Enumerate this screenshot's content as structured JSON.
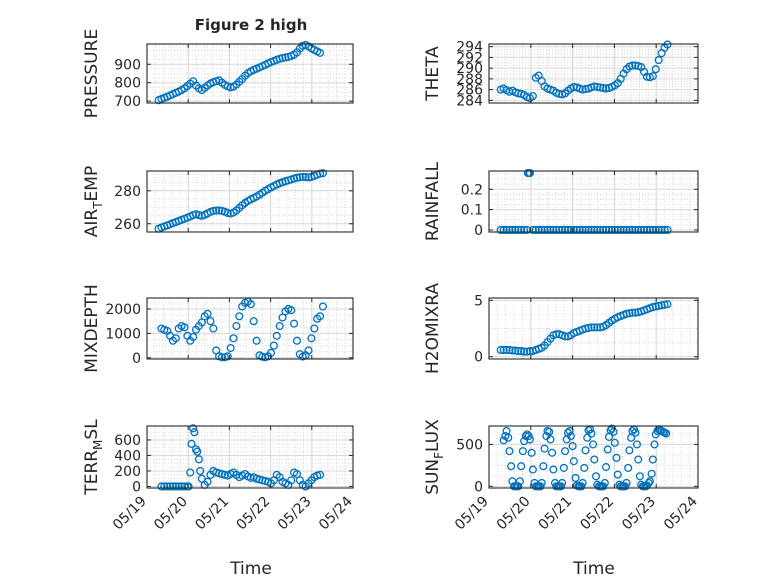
{
  "figure": {
    "title": "Figure 2 high",
    "xlabel": "Time",
    "x_ticks": [
      "05/19",
      "05/20",
      "05/21",
      "05/22",
      "05/23",
      "05/24"
    ],
    "marker_color": "#0072BD",
    "grid_color": "#d9d9d9"
  },
  "chart_data": [
    {
      "type": "scatter",
      "ylabel": "PRESSURE",
      "ylabel_parts": [
        [
          "PRESSURE",
          ""
        ]
      ],
      "title": "Figure 2 high",
      "xlabel": "",
      "xlim": [
        0,
        5
      ],
      "ylim": [
        690,
        1010
      ],
      "yticks": [
        700,
        800,
        900
      ],
      "grid": true,
      "x": [
        0.28,
        0.35,
        0.42,
        0.49,
        0.56,
        0.63,
        0.7,
        0.77,
        0.84,
        0.91,
        0.98,
        1.05,
        1.12,
        1.19,
        1.26,
        1.33,
        1.4,
        1.47,
        1.54,
        1.61,
        1.68,
        1.75,
        1.82,
        1.89,
        1.96,
        2.03,
        2.1,
        2.17,
        2.24,
        2.31,
        2.38,
        2.45,
        2.52,
        2.59,
        2.66,
        2.73,
        2.8,
        2.87,
        2.94,
        3.01,
        3.08,
        3.15,
        3.22,
        3.29,
        3.36,
        3.43,
        3.5,
        3.57,
        3.64,
        3.71,
        3.78,
        3.85,
        3.92,
        3.99,
        4.06,
        4.13,
        4.2
      ],
      "y": [
        705,
        712,
        718,
        724,
        731,
        738,
        745,
        752,
        760,
        770,
        782,
        795,
        808,
        785,
        770,
        760,
        772,
        785,
        796,
        803,
        808,
        813,
        800,
        788,
        780,
        775,
        779,
        790,
        805,
        820,
        838,
        852,
        862,
        870,
        876,
        883,
        890,
        897,
        905,
        912,
        918,
        924,
        930,
        934,
        937,
        940,
        945,
        952,
        965,
        985,
        1000,
        1005,
        997,
        986,
        978,
        970,
        962
      ]
    },
    {
      "type": "scatter",
      "ylabel": "THETA",
      "ylabel_parts": [
        [
          "THETA",
          ""
        ]
      ],
      "xlabel": "",
      "xlim": [
        0,
        5
      ],
      "ylim": [
        283.5,
        294.5
      ],
      "yticks": [
        284,
        286,
        288,
        290,
        292,
        294
      ],
      "grid": true,
      "x": [
        0.28,
        0.35,
        0.42,
        0.49,
        0.56,
        0.63,
        0.7,
        0.77,
        0.84,
        0.91,
        0.98,
        1.05,
        1.12,
        1.19,
        1.26,
        1.33,
        1.4,
        1.47,
        1.54,
        1.61,
        1.68,
        1.75,
        1.82,
        1.89,
        1.96,
        2.03,
        2.1,
        2.17,
        2.24,
        2.31,
        2.38,
        2.45,
        2.52,
        2.59,
        2.66,
        2.73,
        2.8,
        2.87,
        2.94,
        3.01,
        3.08,
        3.15,
        3.22,
        3.29,
        3.36,
        3.43,
        3.5,
        3.57,
        3.64,
        3.71,
        3.78,
        3.85,
        3.92,
        3.99,
        4.06,
        4.13,
        4.2,
        4.27
      ],
      "y": [
        286.0,
        286.2,
        285.9,
        285.6,
        285.8,
        285.5,
        285.3,
        285.2,
        285.0,
        284.6,
        284.4,
        284.8,
        288.2,
        288.6,
        287.6,
        286.6,
        286.2,
        286.0,
        285.8,
        285.4,
        285.2,
        285.1,
        285.3,
        285.8,
        286.2,
        286.5,
        286.4,
        286.2,
        286.0,
        286.1,
        286.2,
        286.4,
        286.6,
        286.5,
        286.4,
        286.3,
        286.2,
        286.3,
        286.5,
        286.8,
        287.2,
        288.0,
        289.0,
        289.8,
        290.3,
        290.5,
        290.5,
        290.4,
        290.2,
        289.3,
        288.4,
        288.3,
        288.5,
        289.8,
        291.5,
        292.8,
        293.8,
        294.4
      ]
    },
    {
      "type": "scatter",
      "ylabel": "AIR_TEMP",
      "ylabel_parts": [
        [
          "AIR",
          ""
        ],
        [
          "T",
          "sub"
        ],
        [
          "EMP",
          ""
        ]
      ],
      "xlabel": "",
      "xlim": [
        0,
        5
      ],
      "ylim": [
        255,
        292
      ],
      "yticks": [
        260,
        280
      ],
      "grid": true,
      "x": [
        0.28,
        0.35,
        0.42,
        0.49,
        0.56,
        0.63,
        0.7,
        0.77,
        0.84,
        0.91,
        0.98,
        1.05,
        1.12,
        1.19,
        1.26,
        1.33,
        1.4,
        1.47,
        1.54,
        1.61,
        1.68,
        1.75,
        1.82,
        1.89,
        1.96,
        2.03,
        2.1,
        2.17,
        2.24,
        2.31,
        2.38,
        2.45,
        2.52,
        2.59,
        2.66,
        2.73,
        2.8,
        2.87,
        2.94,
        3.01,
        3.08,
        3.15,
        3.22,
        3.29,
        3.36,
        3.43,
        3.5,
        3.57,
        3.64,
        3.71,
        3.78,
        3.85,
        3.92,
        3.99,
        4.06,
        4.13,
        4.2,
        4.27
      ],
      "y": [
        257.0,
        257.7,
        258.4,
        259.0,
        259.7,
        260.4,
        261.0,
        261.7,
        262.4,
        263.0,
        263.7,
        264.4,
        265.3,
        265.8,
        265.2,
        264.8,
        265.4,
        266.3,
        267.2,
        267.8,
        268.0,
        268.1,
        267.8,
        267.3,
        266.5,
        266.2,
        266.8,
        268.0,
        269.6,
        271.2,
        272.6,
        273.8,
        274.8,
        275.6,
        276.5,
        277.6,
        278.8,
        280.0,
        281.0,
        282.0,
        282.9,
        283.8,
        284.6,
        285.2,
        285.8,
        286.3,
        286.8,
        287.4,
        287.9,
        288.2,
        288.4,
        288.3,
        288.1,
        288.4,
        289.0,
        289.8,
        290.4,
        290.7
      ]
    },
    {
      "type": "scatter",
      "ylabel": "RAINFALL",
      "ylabel_parts": [
        [
          "RAINFALL",
          ""
        ]
      ],
      "xlabel": "",
      "xlim": [
        0,
        5
      ],
      "ylim": [
        -0.01,
        0.29
      ],
      "yticks": [
        0,
        0.1,
        0.2
      ],
      "grid": true,
      "x": [
        0.28,
        0.35,
        0.42,
        0.49,
        0.56,
        0.63,
        0.7,
        0.77,
        0.84,
        0.91,
        0.93,
        0.96,
        0.98,
        1.05,
        1.12,
        1.19,
        1.26,
        1.33,
        1.4,
        1.47,
        1.54,
        1.61,
        1.68,
        1.75,
        1.82,
        1.89,
        1.96,
        2.03,
        2.1,
        2.17,
        2.24,
        2.31,
        2.38,
        2.45,
        2.52,
        2.59,
        2.66,
        2.73,
        2.8,
        2.87,
        2.94,
        3.01,
        3.08,
        3.15,
        3.22,
        3.29,
        3.36,
        3.43,
        3.5,
        3.57,
        3.64,
        3.71,
        3.78,
        3.85,
        3.92,
        3.99,
        4.06,
        4.13,
        4.2,
        4.27
      ],
      "y": [
        0,
        0,
        0,
        0,
        0,
        0,
        0,
        0,
        0,
        0,
        0.28,
        0.28,
        0.28,
        0,
        0,
        0,
        0,
        0,
        0,
        0,
        0,
        0,
        0,
        0,
        0,
        0,
        0,
        0,
        0,
        0,
        0,
        0,
        0,
        0,
        0,
        0,
        0,
        0,
        0,
        0,
        0,
        0,
        0,
        0,
        0,
        0,
        0,
        0,
        0,
        0,
        0,
        0,
        0,
        0,
        0,
        0,
        0,
        0,
        0,
        0
      ]
    },
    {
      "type": "scatter",
      "ylabel": "MIXDEPTH",
      "ylabel_parts": [
        [
          "MIXDEPTH",
          ""
        ]
      ],
      "xlabel": "",
      "xlim": [
        0,
        5
      ],
      "ylim": [
        -50,
        2450
      ],
      "yticks": [
        0,
        1000,
        2000
      ],
      "grid": true,
      "x": [
        0.35,
        0.42,
        0.49,
        0.56,
        0.63,
        0.7,
        0.77,
        0.84,
        0.91,
        0.98,
        1.05,
        1.12,
        1.19,
        1.26,
        1.33,
        1.4,
        1.47,
        1.54,
        1.61,
        1.68,
        1.75,
        1.82,
        1.89,
        1.96,
        2.03,
        2.1,
        2.17,
        2.24,
        2.31,
        2.38,
        2.45,
        2.52,
        2.59,
        2.66,
        2.73,
        2.8,
        2.87,
        2.94,
        3.01,
        3.08,
        3.15,
        3.22,
        3.29,
        3.36,
        3.43,
        3.5,
        3.57,
        3.64,
        3.71,
        3.78,
        3.85,
        3.92,
        3.99,
        4.06,
        4.13,
        4.2,
        4.27
      ],
      "y": [
        1200,
        1150,
        1100,
        900,
        700,
        800,
        1200,
        1300,
        1250,
        900,
        700,
        850,
        1150,
        1300,
        1450,
        1700,
        1800,
        1500,
        1200,
        300,
        60,
        20,
        20,
        60,
        400,
        800,
        1300,
        1700,
        2100,
        2250,
        2300,
        2200,
        1500,
        700,
        100,
        40,
        20,
        60,
        200,
        500,
        900,
        1300,
        1650,
        1900,
        2000,
        1950,
        1400,
        700,
        150,
        50,
        100,
        300,
        800,
        1200,
        1600,
        1700,
        2100
      ]
    },
    {
      "type": "scatter",
      "ylabel": "H2OMIXRA",
      "ylabel_parts": [
        [
          "H2OMIXRA",
          ""
        ]
      ],
      "xlabel": "",
      "xlim": [
        0,
        5
      ],
      "ylim": [
        -0.2,
        5.2
      ],
      "yticks": [
        0,
        5
      ],
      "grid": true,
      "x": [
        0.28,
        0.35,
        0.42,
        0.49,
        0.56,
        0.63,
        0.7,
        0.77,
        0.84,
        0.91,
        0.98,
        1.05,
        1.12,
        1.19,
        1.26,
        1.33,
        1.4,
        1.47,
        1.54,
        1.61,
        1.68,
        1.75,
        1.82,
        1.89,
        1.96,
        2.03,
        2.1,
        2.17,
        2.24,
        2.31,
        2.38,
        2.45,
        2.52,
        2.59,
        2.66,
        2.73,
        2.8,
        2.87,
        2.94,
        3.01,
        3.08,
        3.15,
        3.22,
        3.29,
        3.36,
        3.43,
        3.5,
        3.57,
        3.64,
        3.71,
        3.78,
        3.85,
        3.92,
        3.99,
        4.06,
        4.13,
        4.2,
        4.27
      ],
      "y": [
        0.6,
        0.6,
        0.6,
        0.6,
        0.55,
        0.55,
        0.5,
        0.5,
        0.45,
        0.45,
        0.5,
        0.5,
        0.6,
        0.7,
        0.8,
        1.0,
        1.3,
        1.6,
        1.9,
        2.0,
        2.0,
        1.9,
        1.8,
        1.8,
        1.9,
        2.1,
        2.2,
        2.3,
        2.4,
        2.5,
        2.55,
        2.6,
        2.6,
        2.6,
        2.6,
        2.65,
        2.8,
        3.0,
        3.2,
        3.35,
        3.5,
        3.6,
        3.7,
        3.8,
        3.85,
        3.9,
        3.9,
        3.95,
        4.0,
        4.1,
        4.2,
        4.3,
        4.4,
        4.45,
        4.5,
        4.55,
        4.6,
        4.65
      ]
    },
    {
      "type": "scatter",
      "ylabel": "TERR_MSL",
      "ylabel_parts": [
        [
          "TERR",
          ""
        ],
        [
          "M",
          "sub"
        ],
        [
          "SL",
          ""
        ]
      ],
      "xlabel": "Time",
      "xlim": [
        0,
        5
      ],
      "ylim": [
        -20,
        780
      ],
      "yticks": [
        0,
        200,
        400,
        600
      ],
      "grid": true,
      "x": [
        0.35,
        0.42,
        0.49,
        0.56,
        0.63,
        0.7,
        0.77,
        0.84,
        0.91,
        0.98,
        1.01,
        1.05,
        1.08,
        1.12,
        1.15,
        1.19,
        1.22,
        1.26,
        1.29,
        1.33,
        1.4,
        1.47,
        1.54,
        1.61,
        1.68,
        1.75,
        1.82,
        1.89,
        1.96,
        2.03,
        2.1,
        2.17,
        2.24,
        2.31,
        2.38,
        2.45,
        2.52,
        2.59,
        2.66,
        2.73,
        2.8,
        2.87,
        2.94,
        3.01,
        3.08,
        3.15,
        3.22,
        3.29,
        3.36,
        3.43,
        3.5,
        3.57,
        3.64,
        3.71,
        3.78,
        3.85,
        3.92,
        3.99,
        4.06,
        4.13,
        4.2
      ],
      "y": [
        0,
        0,
        0,
        0,
        0,
        0,
        0,
        0,
        0,
        0,
        0,
        180,
        550,
        750,
        700,
        480,
        450,
        350,
        200,
        100,
        20,
        60,
        150,
        200,
        180,
        170,
        160,
        150,
        140,
        160,
        180,
        150,
        120,
        140,
        160,
        130,
        110,
        120,
        100,
        90,
        80,
        70,
        60,
        40,
        80,
        150,
        120,
        60,
        40,
        20,
        80,
        180,
        160,
        80,
        20,
        0,
        40,
        80,
        120,
        140,
        150
      ]
    },
    {
      "type": "scatter",
      "ylabel": "SUN_FLUX",
      "ylabel_parts": [
        [
          "SUN",
          ""
        ],
        [
          "F",
          "sub"
        ],
        [
          "LUX",
          ""
        ]
      ],
      "xlabel": "Time",
      "xlim": [
        0,
        5
      ],
      "ylim": [
        -20,
        720
      ],
      "yticks": [
        0,
        500
      ],
      "grid": true,
      "x": [
        0.35,
        0.39,
        0.42,
        0.46,
        0.49,
        0.53,
        0.56,
        0.6,
        0.63,
        0.67,
        0.7,
        0.74,
        0.77,
        0.81,
        0.84,
        0.88,
        0.91,
        0.95,
        0.98,
        1.02,
        1.05,
        1.09,
        1.12,
        1.16,
        1.19,
        1.23,
        1.26,
        1.3,
        1.33,
        1.37,
        1.4,
        1.44,
        1.47,
        1.51,
        1.54,
        1.58,
        1.61,
        1.65,
        1.68,
        1.72,
        1.75,
        1.79,
        1.82,
        1.86,
        1.89,
        1.93,
        1.96,
        2.0,
        2.03,
        2.07,
        2.1,
        2.14,
        2.17,
        2.21,
        2.24,
        2.28,
        2.31,
        2.35,
        2.38,
        2.42,
        2.45,
        2.49,
        2.52,
        2.56,
        2.59,
        2.63,
        2.66,
        2.7,
        2.73,
        2.77,
        2.8,
        2.84,
        2.87,
        2.91,
        2.94,
        2.98,
        3.01,
        3.05,
        3.08,
        3.12,
        3.15,
        3.19,
        3.22,
        3.26,
        3.29,
        3.33,
        3.36,
        3.4,
        3.43,
        3.47,
        3.5,
        3.54,
        3.57,
        3.61,
        3.64,
        3.68,
        3.71,
        3.75,
        3.78,
        3.82,
        3.85,
        3.89,
        3.92,
        3.96,
        3.99,
        4.03,
        4.06,
        4.1,
        4.13,
        4.17,
        4.2,
        4.24
      ],
      "y": [
        550,
        600,
        660,
        580,
        420,
        240,
        60,
        0,
        0,
        0,
        0,
        60,
        240,
        420,
        540,
        600,
        620,
        600,
        560,
        400,
        200,
        40,
        0,
        0,
        0,
        0,
        40,
        240,
        450,
        600,
        660,
        650,
        560,
        400,
        200,
        40,
        0,
        0,
        0,
        0,
        40,
        220,
        420,
        560,
        640,
        660,
        600,
        480,
        300,
        100,
        10,
        0,
        0,
        0,
        40,
        220,
        430,
        580,
        670,
        680,
        630,
        500,
        320,
        120,
        20,
        0,
        0,
        0,
        0,
        40,
        230,
        440,
        590,
        670,
        690,
        650,
        520,
        340,
        140,
        20,
        0,
        0,
        0,
        0,
        40,
        220,
        430,
        580,
        660,
        680,
        640,
        500,
        320,
        120,
        20,
        0,
        0,
        0,
        10,
        40,
        60,
        150,
        320,
        500,
        620,
        660,
        680,
        670,
        660,
        650,
        640,
        630
      ]
    }
  ]
}
